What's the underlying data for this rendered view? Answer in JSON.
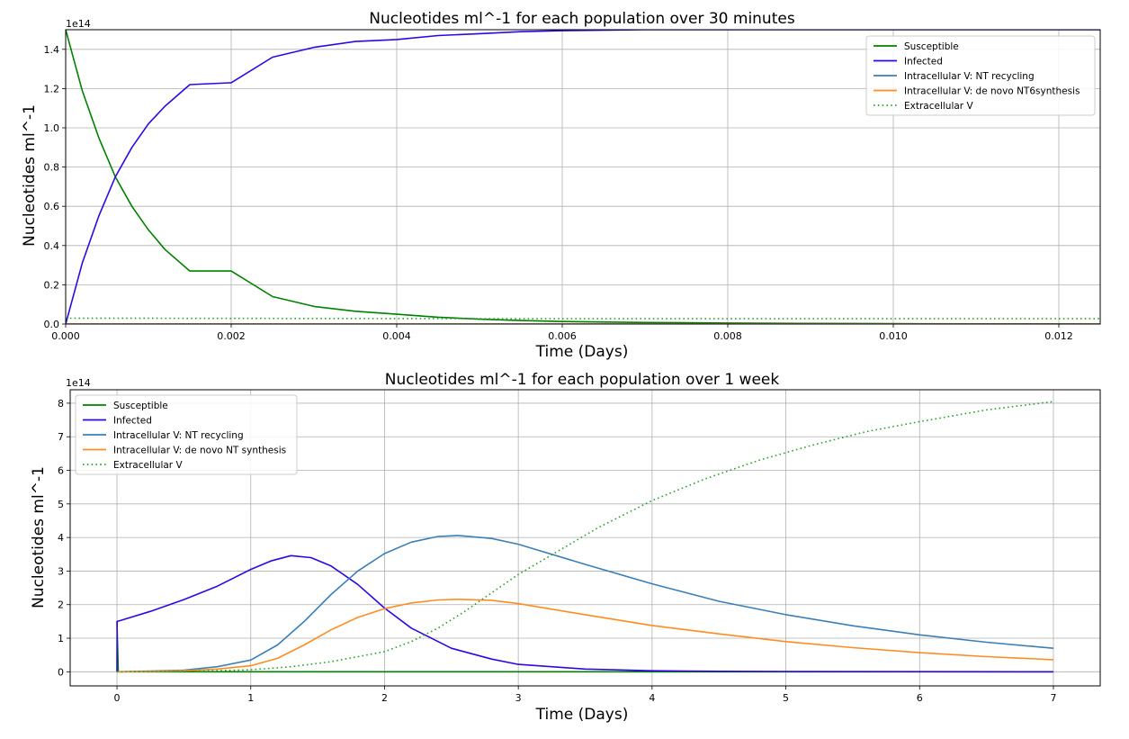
{
  "chart_data": [
    {
      "type": "line",
      "title": "Nucleotides ml^-1 for each population over 30 minutes",
      "xlabel": "Time (Days)",
      "ylabel": "Nucleotides ml^-1",
      "y_offset_text": "1e14",
      "y_scale": 100000000000000.0,
      "xlim": [
        0,
        0.0125
      ],
      "ylim": [
        0,
        1.5
      ],
      "x_ticks": [
        0,
        0.002,
        0.004,
        0.006,
        0.008,
        0.01,
        0.012
      ],
      "x_tick_labels": [
        "0.000",
        "0.002",
        "0.004",
        "0.006",
        "0.008",
        "0.010",
        "0.012"
      ],
      "y_ticks": [
        0,
        0.2,
        0.4,
        0.6,
        0.8,
        1.0,
        1.2,
        1.4
      ],
      "y_tick_labels": [
        "0.0",
        "0.2",
        "0.4",
        "0.6",
        "0.8",
        "1.0",
        "1.2",
        "1.4"
      ],
      "grid": true,
      "legend_position": "upper right",
      "series": [
        {
          "name": "Susceptible",
          "color": "#008000",
          "style": "solid",
          "x": [
            0,
            0.0002,
            0.0004,
            0.0006,
            0.0008,
            0.001,
            0.0012,
            0.0015,
            0.002,
            0.0025,
            0.003,
            0.0035,
            0.004,
            0.0045,
            0.005,
            0.0055,
            0.006,
            0.007,
            0.008,
            0.009,
            0.01,
            0.011,
            0.012,
            0.0125
          ],
          "y": [
            1.5,
            1.19,
            0.95,
            0.75,
            0.6,
            0.48,
            0.38,
            0.27,
            0.27,
            0.14,
            0.09,
            0.065,
            0.05,
            0.035,
            0.025,
            0.018,
            0.013,
            0.008,
            0.005,
            0.003,
            0.002,
            0.001,
            0.001,
            0.0
          ]
        },
        {
          "name": "Infected",
          "color": "#2d07e6",
          "style": "solid",
          "x": [
            0,
            0.0002,
            0.0004,
            0.0006,
            0.0008,
            0.001,
            0.0012,
            0.0015,
            0.002,
            0.0025,
            0.003,
            0.0035,
            0.004,
            0.0045,
            0.005,
            0.0055,
            0.006,
            0.007,
            0.008,
            0.009,
            0.01,
            0.011,
            0.012,
            0.0125
          ],
          "y": [
            0.0,
            0.31,
            0.55,
            0.75,
            0.9,
            1.02,
            1.11,
            1.22,
            1.23,
            1.36,
            1.41,
            1.44,
            1.45,
            1.47,
            1.48,
            1.49,
            1.495,
            1.5,
            1.5,
            1.5,
            1.5,
            1.5,
            1.5,
            1.5
          ]
        },
        {
          "name": "Intracellular V: NT recycling",
          "color": "#3a7fb8",
          "style": "solid",
          "x": [
            0,
            0.0125
          ],
          "y": [
            0.0,
            0.0
          ]
        },
        {
          "name": "Intracellular V: de novo NT6synthesis",
          "color": "#ff8c21",
          "style": "solid",
          "x": [
            0,
            0.0125
          ],
          "y": [
            0.0,
            0.0
          ]
        },
        {
          "name": "Extracellular V",
          "color": "#2ca02c",
          "style": "dotted",
          "x": [
            0,
            0.002,
            0.004,
            0.006,
            0.008,
            0.01,
            0.0125
          ],
          "y": [
            0.03,
            0.029,
            0.028,
            0.027,
            0.027,
            0.027,
            0.027
          ]
        }
      ]
    },
    {
      "type": "line",
      "title": "Nucleotides ml^-1 for each population over 1 week",
      "xlabel": "Time (Days)",
      "ylabel": "Nucleotides ml^-1",
      "y_offset_text": "1e14",
      "y_scale": 100000000000000.0,
      "xlim": [
        -0.35,
        7.35
      ],
      "ylim": [
        -0.42,
        8.4
      ],
      "x_ticks": [
        0,
        1,
        2,
        3,
        4,
        5,
        6,
        7
      ],
      "x_tick_labels": [
        "0",
        "1",
        "2",
        "3",
        "4",
        "5",
        "6",
        "7"
      ],
      "y_ticks": [
        0,
        1,
        2,
        3,
        4,
        5,
        6,
        7,
        8
      ],
      "y_tick_labels": [
        "0",
        "1",
        "2",
        "3",
        "4",
        "5",
        "6",
        "7",
        "8"
      ],
      "grid": true,
      "legend_position": "upper left",
      "series": [
        {
          "name": "Susceptible",
          "color": "#008000",
          "style": "solid",
          "x": [
            0,
            0.01,
            7
          ],
          "y": [
            1.5,
            0.0,
            0.0
          ]
        },
        {
          "name": "Infected",
          "color": "#2d07e6",
          "style": "solid",
          "x": [
            0,
            0.001,
            0.02,
            0.25,
            0.5,
            0.75,
            1.0,
            1.15,
            1.3,
            1.45,
            1.6,
            1.8,
            2.0,
            2.2,
            2.5,
            2.8,
            3.0,
            3.5,
            4.0,
            4.5,
            5.0,
            6.0,
            7.0
          ],
          "y": [
            0.0,
            1.5,
            1.52,
            1.8,
            2.15,
            2.55,
            3.05,
            3.3,
            3.46,
            3.4,
            3.15,
            2.6,
            1.9,
            1.3,
            0.7,
            0.38,
            0.22,
            0.08,
            0.03,
            0.015,
            0.008,
            0.003,
            0.001
          ]
        },
        {
          "name": "Intracellular V: NT recycling",
          "color": "#3a7fb8",
          "style": "solid",
          "x": [
            0,
            0.25,
            0.5,
            0.75,
            1.0,
            1.2,
            1.4,
            1.6,
            1.8,
            2.0,
            2.2,
            2.4,
            2.55,
            2.8,
            3.0,
            3.5,
            4.0,
            4.5,
            5.0,
            5.5,
            6.0,
            6.5,
            7.0
          ],
          "y": [
            0.0,
            0.02,
            0.05,
            0.15,
            0.35,
            0.8,
            1.5,
            2.3,
            3.0,
            3.52,
            3.86,
            4.03,
            4.06,
            3.97,
            3.8,
            3.2,
            2.62,
            2.1,
            1.7,
            1.37,
            1.1,
            0.88,
            0.7
          ]
        },
        {
          "name": "Intracellular V: de novo NT synthesis",
          "color": "#ff8c21",
          "style": "solid",
          "x": [
            0,
            0.25,
            0.5,
            0.75,
            1.0,
            1.2,
            1.4,
            1.6,
            1.8,
            2.0,
            2.2,
            2.4,
            2.55,
            2.8,
            3.0,
            3.5,
            4.0,
            4.5,
            5.0,
            5.5,
            6.0,
            6.5,
            7.0
          ],
          "y": [
            0.0,
            0.01,
            0.03,
            0.08,
            0.18,
            0.4,
            0.8,
            1.25,
            1.62,
            1.88,
            2.05,
            2.14,
            2.16,
            2.13,
            2.03,
            1.7,
            1.38,
            1.13,
            0.9,
            0.72,
            0.57,
            0.45,
            0.36
          ]
        },
        {
          "name": "Extracellular V",
          "color": "#2ca02c",
          "style": "dotted",
          "x": [
            0,
            0.5,
            1.0,
            1.3,
            1.6,
            2.0,
            2.2,
            2.4,
            2.6,
            2.8,
            3.0,
            3.3,
            3.6,
            4.0,
            4.4,
            4.8,
            5.2,
            5.6,
            6.0,
            6.5,
            7.0
          ],
          "y": [
            0.0,
            0.01,
            0.06,
            0.15,
            0.3,
            0.6,
            0.9,
            1.3,
            1.8,
            2.35,
            2.9,
            3.6,
            4.3,
            5.1,
            5.75,
            6.3,
            6.75,
            7.15,
            7.45,
            7.8,
            8.05
          ]
        }
      ]
    }
  ]
}
